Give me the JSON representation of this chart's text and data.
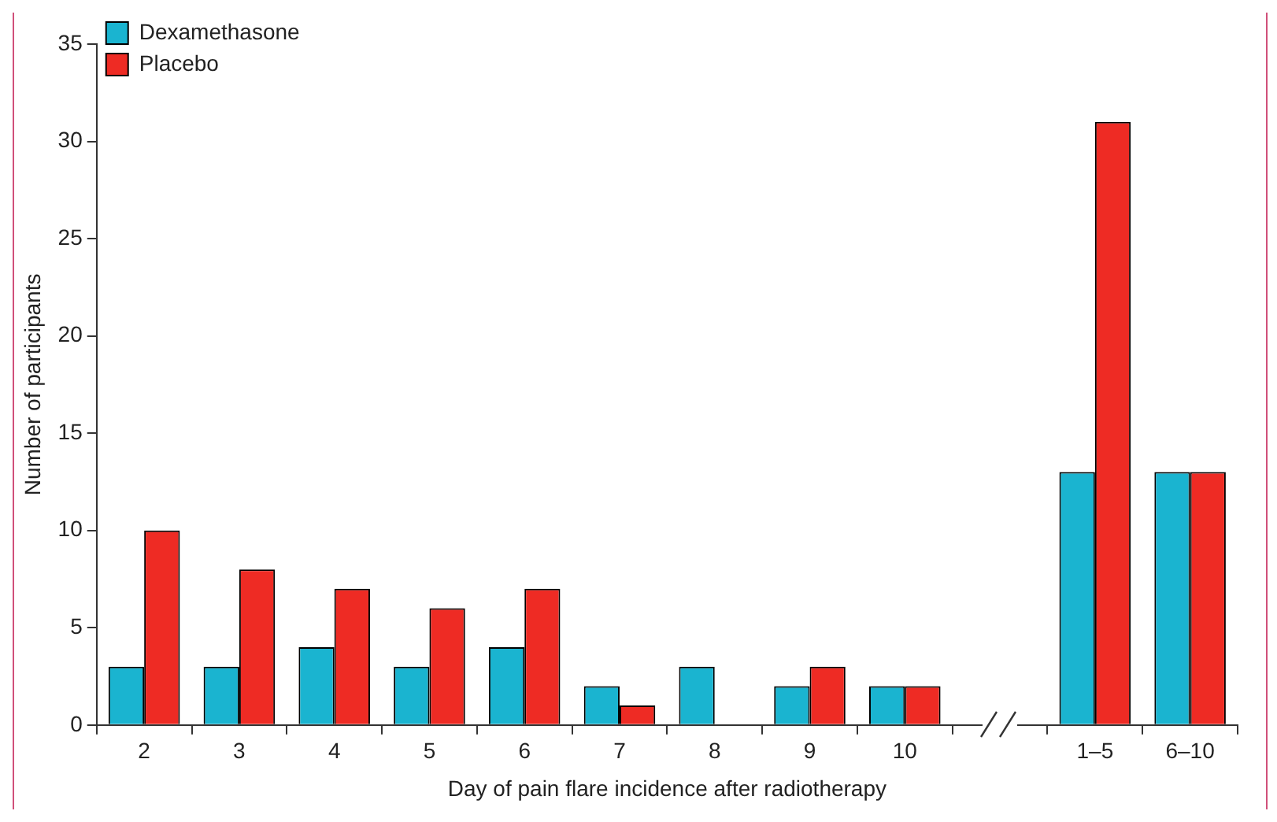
{
  "chart_data": {
    "type": "bar",
    "xlabel": "Day of pain flare incidence after radiotherapy",
    "ylabel": "Number of participants",
    "categories": [
      "2",
      "3",
      "4",
      "5",
      "6",
      "7",
      "8",
      "9",
      "10",
      null,
      "1–5",
      "6–10"
    ],
    "series": [
      {
        "name": "Dexamethasone",
        "color": "#1ab4d0",
        "values": [
          3,
          3,
          4,
          3,
          4,
          2,
          3,
          2,
          2,
          null,
          13,
          13
        ]
      },
      {
        "name": "Placebo",
        "color": "#ee2b24",
        "values": [
          10,
          8,
          7,
          6,
          7,
          1,
          0,
          3,
          2,
          null,
          31,
          13
        ]
      }
    ],
    "ylim": [
      0,
      35
    ],
    "yticks": [
      0,
      5,
      10,
      15,
      20,
      25,
      30,
      35
    ],
    "grid": false,
    "legend": "top left"
  }
}
